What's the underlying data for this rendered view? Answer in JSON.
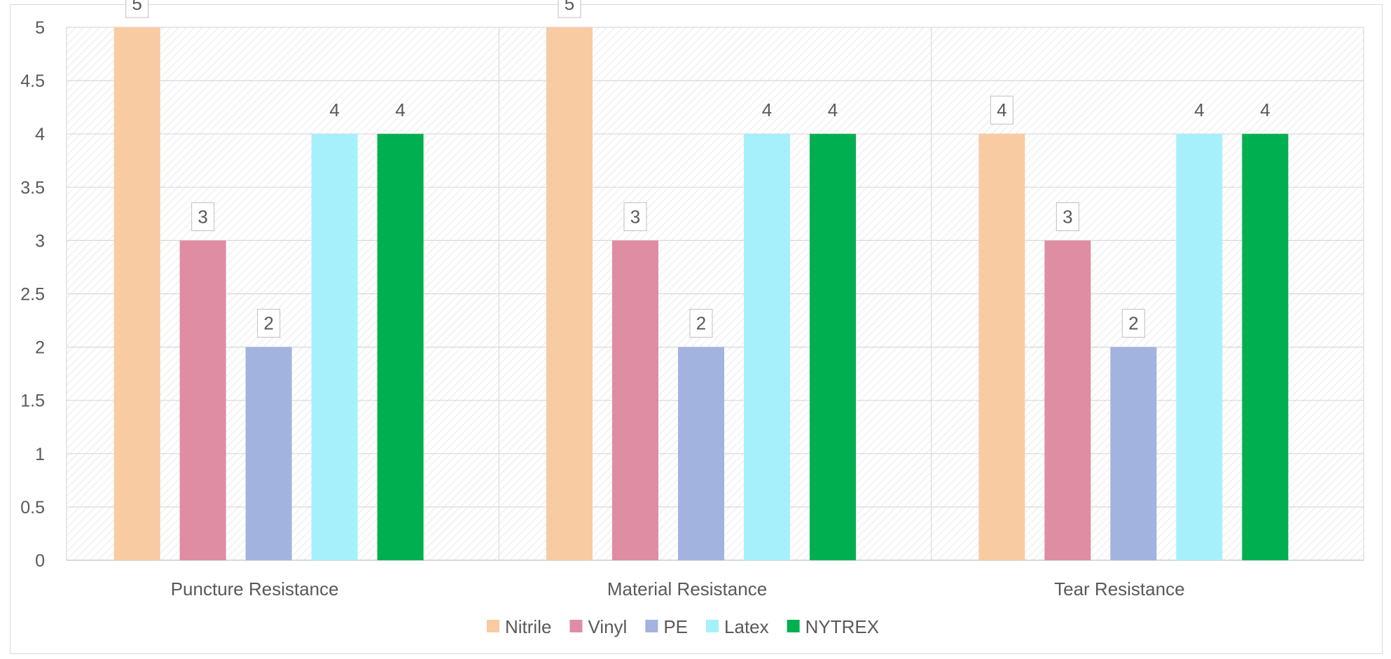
{
  "chart_data": {
    "type": "bar",
    "categories": [
      "Puncture Resistance",
      "Material Resistance",
      "Tear Resistance"
    ],
    "series": [
      {
        "name": "Nitrile",
        "color": "#F8CBA2",
        "values": [
          5,
          5,
          4
        ]
      },
      {
        "name": "Vinyl",
        "color": "#DE8DA3",
        "values": [
          3,
          3,
          3
        ]
      },
      {
        "name": "PE",
        "color": "#A3B3DF",
        "values": [
          2,
          2,
          2
        ]
      },
      {
        "name": "Latex",
        "color": "#A6F0FC",
        "values": [
          4,
          4,
          4
        ]
      },
      {
        "name": "NYTREX",
        "color": "#00B050",
        "values": [
          4,
          4,
          4
        ]
      }
    ],
    "ylim": [
      0,
      5
    ],
    "yticks": [
      "0",
      "0.5",
      "1",
      "1.5",
      "2",
      "2.5",
      "3",
      "3.5",
      "4",
      "4.5",
      "5"
    ],
    "title": "",
    "xlabel": "",
    "ylabel": "",
    "grid": true,
    "legend_position": "bottom",
    "data_labels": true
  }
}
